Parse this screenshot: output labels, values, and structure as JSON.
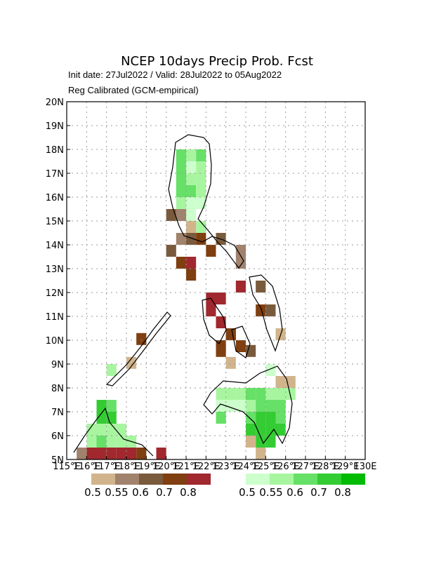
{
  "header": {
    "title": "NCEP 10days Precip Prob. Fcst",
    "line1": "Init date: 27Jul2022 / Valid: 28Jul2022 to 05Aug2022",
    "line2": "Reg Calibrated (GCM-empirical)"
  },
  "map": {
    "lonlim": [
      115,
      130
    ],
    "latlim": [
      5,
      20
    ],
    "lon_ticks": [
      {
        "value": 115,
        "label": "115°E"
      },
      {
        "value": 116,
        "label": "116°E"
      },
      {
        "value": 117,
        "label": "117°E"
      },
      {
        "value": 118,
        "label": "118°E"
      },
      {
        "value": 119,
        "label": "119°E"
      },
      {
        "value": 120,
        "label": "120°E"
      },
      {
        "value": 121,
        "label": "121°E"
      },
      {
        "value": 122,
        "label": "122°E"
      },
      {
        "value": 123,
        "label": "123°E"
      },
      {
        "value": 124,
        "label": "124°E"
      },
      {
        "value": 125,
        "label": "125°E"
      },
      {
        "value": 126,
        "label": "126°E"
      },
      {
        "value": 127,
        "label": "127°E"
      },
      {
        "value": 128,
        "label": "128°E"
      },
      {
        "value": 129,
        "label": "129°E"
      },
      {
        "value": 130,
        "label": "130E"
      }
    ],
    "lat_ticks": [
      {
        "value": 5,
        "label": "5N"
      },
      {
        "value": 6,
        "label": "6N"
      },
      {
        "value": 7,
        "label": "7N"
      },
      {
        "value": 8,
        "label": "8N"
      },
      {
        "value": 9,
        "label": "9N"
      },
      {
        "value": 10,
        "label": "10N"
      },
      {
        "value": 11,
        "label": "11N"
      },
      {
        "value": 12,
        "label": "12N"
      },
      {
        "value": 13,
        "label": "13N"
      },
      {
        "value": 14,
        "label": "14N"
      },
      {
        "value": 15,
        "label": "15N"
      },
      {
        "value": 16,
        "label": "16N"
      },
      {
        "value": 17,
        "label": "17N"
      },
      {
        "value": 18,
        "label": "18N"
      },
      {
        "value": 19,
        "label": "19N"
      },
      {
        "value": 20,
        "label": "20N"
      }
    ],
    "grid": true,
    "dry_legend": {
      "colors": [
        "#d2b48c",
        "#a0826d",
        "#7a5a3c",
        "#7f3f10",
        "#a0282e"
      ],
      "labels": [
        0.5,
        0.55,
        0.6,
        0.7,
        0.8
      ]
    },
    "wet_legend": {
      "colors": [
        "#ccffcc",
        "#a8f5a0",
        "#66e066",
        "#33cc33",
        "#00bb00"
      ],
      "labels": [
        0.5,
        0.55,
        0.6,
        0.7,
        0.8
      ]
    },
    "wet_cells": [
      [
        120.5,
        17.5,
        2
      ],
      [
        121,
        17.5,
        1
      ],
      [
        121.5,
        17.5,
        2
      ],
      [
        120.5,
        17,
        2
      ],
      [
        121,
        17,
        0
      ],
      [
        121.5,
        17,
        1
      ],
      [
        120.5,
        16.5,
        2
      ],
      [
        121,
        16.5,
        1
      ],
      [
        121.5,
        16.5,
        1
      ],
      [
        120.5,
        16,
        2
      ],
      [
        121,
        16,
        2
      ],
      [
        121.5,
        16,
        1
      ],
      [
        120.5,
        15.5,
        1
      ],
      [
        121,
        15.5,
        0
      ],
      [
        121.5,
        15.5,
        0
      ],
      [
        120.5,
        15,
        0
      ],
      [
        121,
        15,
        0
      ],
      [
        121.5,
        14.5,
        1
      ],
      [
        123.5,
        13.5,
        0
      ],
      [
        122.5,
        7.5,
        1
      ],
      [
        123,
        7.5,
        1
      ],
      [
        123.5,
        7.5,
        1
      ],
      [
        124,
        7.5,
        2
      ],
      [
        124.5,
        7.5,
        2
      ],
      [
        125,
        7.5,
        1
      ],
      [
        125.5,
        7.5,
        1
      ],
      [
        126,
        7.5,
        1
      ],
      [
        122.5,
        7,
        0
      ],
      [
        123,
        7,
        0
      ],
      [
        123.5,
        7,
        0
      ],
      [
        124,
        7,
        1
      ],
      [
        124.5,
        7,
        2
      ],
      [
        125,
        7,
        2
      ],
      [
        125.5,
        7,
        2
      ],
      [
        122.5,
        6.5,
        2
      ],
      [
        124,
        6.5,
        2
      ],
      [
        124.5,
        6.5,
        3
      ],
      [
        125,
        6.5,
        3
      ],
      [
        125.5,
        6.5,
        2
      ],
      [
        124,
        6,
        3
      ],
      [
        124.5,
        6,
        3
      ],
      [
        125,
        6,
        3
      ],
      [
        125.5,
        6,
        3
      ],
      [
        124.5,
        5.5,
        3
      ],
      [
        125,
        5.5,
        3
      ],
      [
        125,
        8.5,
        0
      ],
      [
        116.5,
        7,
        3
      ],
      [
        117,
        7,
        2
      ],
      [
        116.5,
        6.5,
        3
      ],
      [
        117,
        6.5,
        3
      ],
      [
        116,
        6,
        1
      ],
      [
        116.5,
        6,
        1
      ],
      [
        117,
        6,
        1
      ],
      [
        117.5,
        6,
        1
      ],
      [
        116,
        5.5,
        1
      ],
      [
        116.5,
        5.5,
        2
      ],
      [
        117,
        5.5,
        1
      ],
      [
        117.5,
        5.5,
        1
      ],
      [
        118,
        5.5,
        1
      ],
      [
        117,
        8.5,
        1
      ]
    ],
    "dry_cells": [
      [
        120,
        15,
        2
      ],
      [
        120.5,
        15,
        1
      ],
      [
        121,
        14.5,
        0
      ],
      [
        120.5,
        14,
        1
      ],
      [
        121,
        14,
        2
      ],
      [
        121.5,
        14,
        3
      ],
      [
        122.5,
        14,
        2
      ],
      [
        122,
        13.5,
        3
      ],
      [
        123.5,
        13.5,
        1
      ],
      [
        120,
        13.5,
        2
      ],
      [
        120.5,
        13,
        3
      ],
      [
        121,
        13,
        4
      ],
      [
        123.5,
        13,
        1
      ],
      [
        121,
        12.5,
        3
      ],
      [
        123.5,
        12,
        4
      ],
      [
        124.5,
        12,
        2
      ],
      [
        122,
        11.5,
        4
      ],
      [
        122.5,
        11.5,
        4
      ],
      [
        124.5,
        11,
        3
      ],
      [
        125,
        11,
        2
      ],
      [
        122,
        11,
        4
      ],
      [
        122.5,
        10.5,
        4
      ],
      [
        123,
        10,
        4
      ],
      [
        125.5,
        10,
        0
      ],
      [
        122.5,
        9.5,
        3
      ],
      [
        123,
        10,
        3
      ],
      [
        123.5,
        9.5,
        3
      ],
      [
        118.5,
        9.8,
        3
      ],
      [
        118,
        8.8,
        0
      ],
      [
        123,
        8.8,
        0
      ],
      [
        122.5,
        9.3,
        3
      ],
      [
        124,
        9.3,
        2
      ],
      [
        125.5,
        8,
        0
      ],
      [
        126,
        8,
        0
      ],
      [
        124,
        5.5,
        0
      ],
      [
        124.5,
        5,
        0
      ],
      [
        115.5,
        5,
        1
      ],
      [
        116,
        5,
        4
      ],
      [
        116.5,
        5,
        4
      ],
      [
        117,
        5,
        4
      ],
      [
        117.5,
        5,
        4
      ],
      [
        118,
        5,
        4
      ],
      [
        118.5,
        5,
        3
      ],
      [
        119.5,
        5,
        4
      ]
    ]
  }
}
